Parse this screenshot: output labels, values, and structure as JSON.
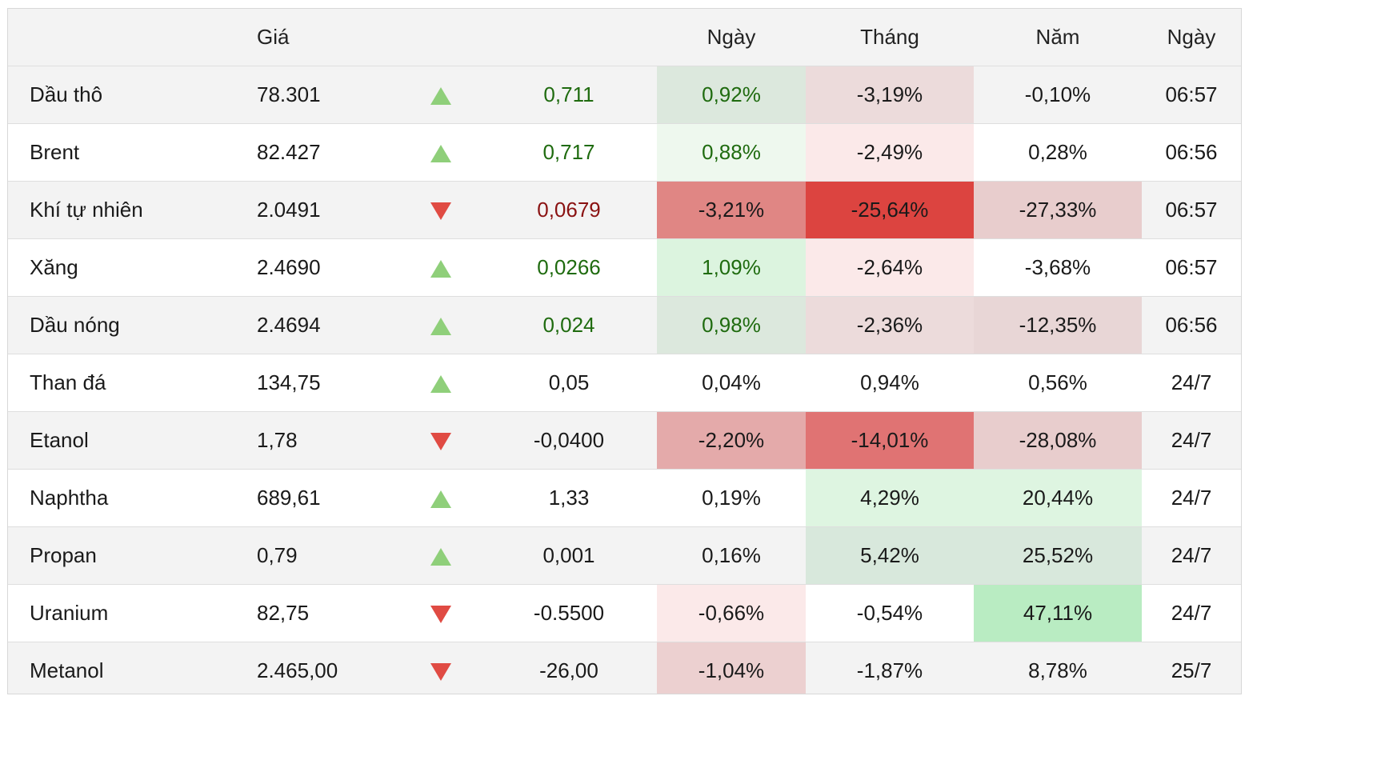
{
  "header": {
    "price": "Giá",
    "day": "Ngày",
    "month": "Tháng",
    "year": "Năm",
    "date": "Ngày"
  },
  "rows": [
    {
      "name": "Dầu thô",
      "price": "78.301",
      "dir": "up",
      "change": "0,711",
      "change_color": "pos",
      "day": "0,92%",
      "day_bg": "#dce8dd",
      "day_color": "pos",
      "month": "-3,19%",
      "month_bg": "#ecdbdb",
      "year": "-0,10%",
      "year_bg": "",
      "time": "06:57"
    },
    {
      "name": "Brent",
      "price": "82.427",
      "dir": "up",
      "change": "0,717",
      "change_color": "pos",
      "day": "0,88%",
      "day_bg": "#eef8ee",
      "day_color": "pos",
      "month": "-2,49%",
      "month_bg": "#fbe9e9",
      "year": "0,28%",
      "year_bg": "",
      "time": "06:56"
    },
    {
      "name": "Khí tự nhiên",
      "price": "2.0491",
      "dir": "down",
      "change": "0,0679",
      "change_color": "neg",
      "day": "-3,21%",
      "day_bg": "#e08684",
      "day_color": "",
      "month": "-25,64%",
      "month_bg": "#dc4440",
      "year": "-27,33%",
      "year_bg": "#e8cdcd",
      "time": "06:57"
    },
    {
      "name": "Xăng",
      "price": "2.4690",
      "dir": "up",
      "change": "0,0266",
      "change_color": "pos",
      "day": "1,09%",
      "day_bg": "#dcf4df",
      "day_color": "pos",
      "month": "-2,64%",
      "month_bg": "#fbe9e9",
      "year": "-3,68%",
      "year_bg": "",
      "time": "06:57"
    },
    {
      "name": "Dầu nóng",
      "price": "2.4694",
      "dir": "up",
      "change": "0,024",
      "change_color": "pos",
      "day": "0,98%",
      "day_bg": "#dce8dd",
      "day_color": "pos",
      "month": "-2,36%",
      "month_bg": "#ecdbdb",
      "year": "-12,35%",
      "year_bg": "#e8d6d6",
      "time": "06:56"
    },
    {
      "name": "Than đá",
      "price": "134,75",
      "dir": "up",
      "change": "0,05",
      "change_color": "",
      "day": "0,04%",
      "day_bg": "",
      "day_color": "",
      "month": "0,94%",
      "month_bg": "",
      "year": "0,56%",
      "year_bg": "",
      "time": "24/7"
    },
    {
      "name": "Etanol",
      "price": "1,78",
      "dir": "down",
      "change": "-0,0400",
      "change_color": "",
      "day": "-2,20%",
      "day_bg": "#e4aaaa",
      "day_color": "",
      "month": "-14,01%",
      "month_bg": "#e07373",
      "year": "-28,08%",
      "year_bg": "#e8cdcd",
      "time": "24/7"
    },
    {
      "name": "Naphtha",
      "price": "689,61",
      "dir": "up",
      "change": "1,33",
      "change_color": "",
      "day": "0,19%",
      "day_bg": "",
      "day_color": "",
      "month": "4,29%",
      "month_bg": "#def5e1",
      "year": "20,44%",
      "year_bg": "#def5e1",
      "time": "24/7"
    },
    {
      "name": "Propan",
      "price": "0,79",
      "dir": "up",
      "change": "0,001",
      "change_color": "",
      "day": "0,16%",
      "day_bg": "",
      "day_color": "",
      "month": "5,42%",
      "month_bg": "#d8e8dc",
      "year": "25,52%",
      "year_bg": "#d8e8dc",
      "time": "24/7"
    },
    {
      "name": "Uranium",
      "price": "82,75",
      "dir": "down",
      "change": "-0.5500",
      "change_color": "",
      "day": "-0,66%",
      "day_bg": "#fbe9e9",
      "day_color": "",
      "month": "-0,54%",
      "month_bg": "",
      "year": "47,11%",
      "year_bg": "#b9ecc2",
      "time": "24/7"
    },
    {
      "name": "Metanol",
      "price": "2.465,00",
      "dir": "down",
      "change": "-26,00",
      "change_color": "",
      "day": "-1,04%",
      "day_bg": "#ecd0d0",
      "day_color": "",
      "month": "-1,87%",
      "month_bg": "",
      "year": "8,78%",
      "year_bg": "",
      "time": "25/7"
    }
  ]
}
